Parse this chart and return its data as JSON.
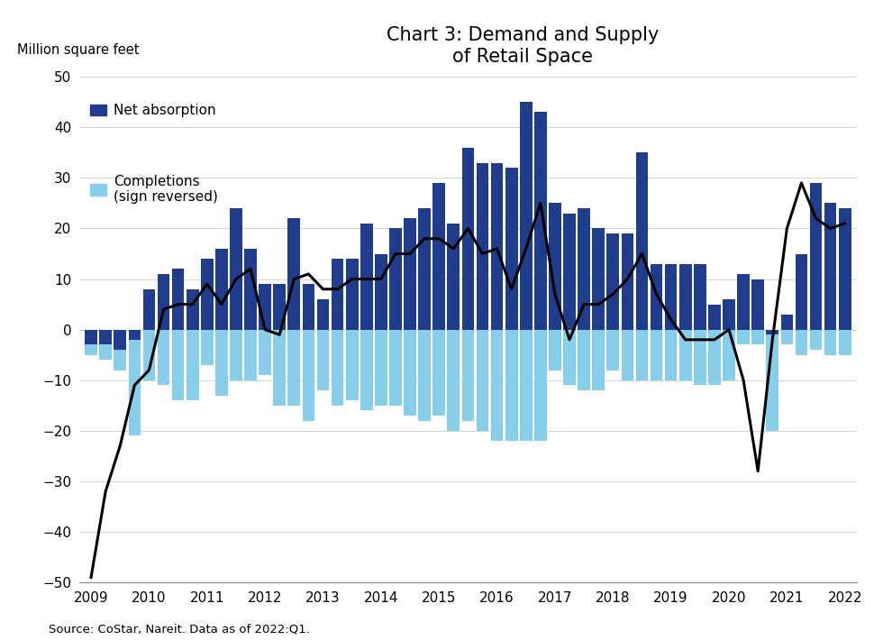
{
  "title": "Chart 3: Demand and Supply\nof Retail Space",
  "ylabel_text": "Million square feet",
  "source": "Source: CoStar, Nareit. Data as of 2022:Q1.",
  "ylim": [
    -50,
    50
  ],
  "yticks": [
    -50,
    -40,
    -30,
    -20,
    -10,
    0,
    10,
    20,
    30,
    40,
    50
  ],
  "dark_blue": "#1f3d8c",
  "light_blue": "#87ceeb",
  "line_color": "#000000",
  "net_absorption": [
    -3,
    -3,
    -4,
    -2,
    8,
    11,
    12,
    8,
    14,
    16,
    24,
    16,
    9,
    9,
    22,
    9,
    6,
    14,
    14,
    21,
    15,
    20,
    22,
    24,
    29,
    21,
    36,
    33,
    33,
    32,
    45,
    43,
    25,
    23,
    24,
    20,
    19,
    19,
    35,
    13,
    13,
    13,
    13,
    5,
    6,
    11,
    10,
    -1,
    3,
    15,
    29,
    25,
    24
  ],
  "completions_neg": [
    -5,
    -6,
    -8,
    -21,
    -10,
    -11,
    -14,
    -14,
    -7,
    -13,
    -10,
    -10,
    -9,
    -15,
    -15,
    -18,
    -12,
    -15,
    -14,
    -16,
    -15,
    -15,
    -17,
    -18,
    -17,
    -20,
    -18,
    -20,
    -22,
    -22,
    -22,
    -22,
    -8,
    -11,
    -12,
    -12,
    -8,
    -10,
    -10,
    -10,
    -10,
    -10,
    -11,
    -11,
    -10,
    -3,
    -3,
    -20,
    -3,
    -5,
    -4,
    -5,
    -5
  ],
  "line_values": [
    -49,
    -32,
    -23,
    -11,
    -8,
    4,
    5,
    5,
    9,
    5,
    10,
    12,
    0,
    -1,
    10,
    11,
    8,
    8,
    10,
    10,
    10,
    15,
    15,
    18,
    18,
    16,
    20,
    15,
    16,
    8,
    16,
    25,
    7,
    -2,
    5,
    5,
    7,
    10,
    15,
    7,
    2,
    -2,
    -2,
    -2,
    0,
    -10,
    -28,
    -2,
    20,
    29,
    22,
    20,
    21
  ],
  "year_tick_positions": [
    0,
    4,
    8,
    12,
    16,
    20,
    24,
    28,
    32,
    36,
    40,
    44,
    48,
    52
  ],
  "year_labels": [
    "2009",
    "2010",
    "2011",
    "2012",
    "2013",
    "2014",
    "2015",
    "2016",
    "2017",
    "2018",
    "2019",
    "2020",
    "2021",
    "2022"
  ]
}
